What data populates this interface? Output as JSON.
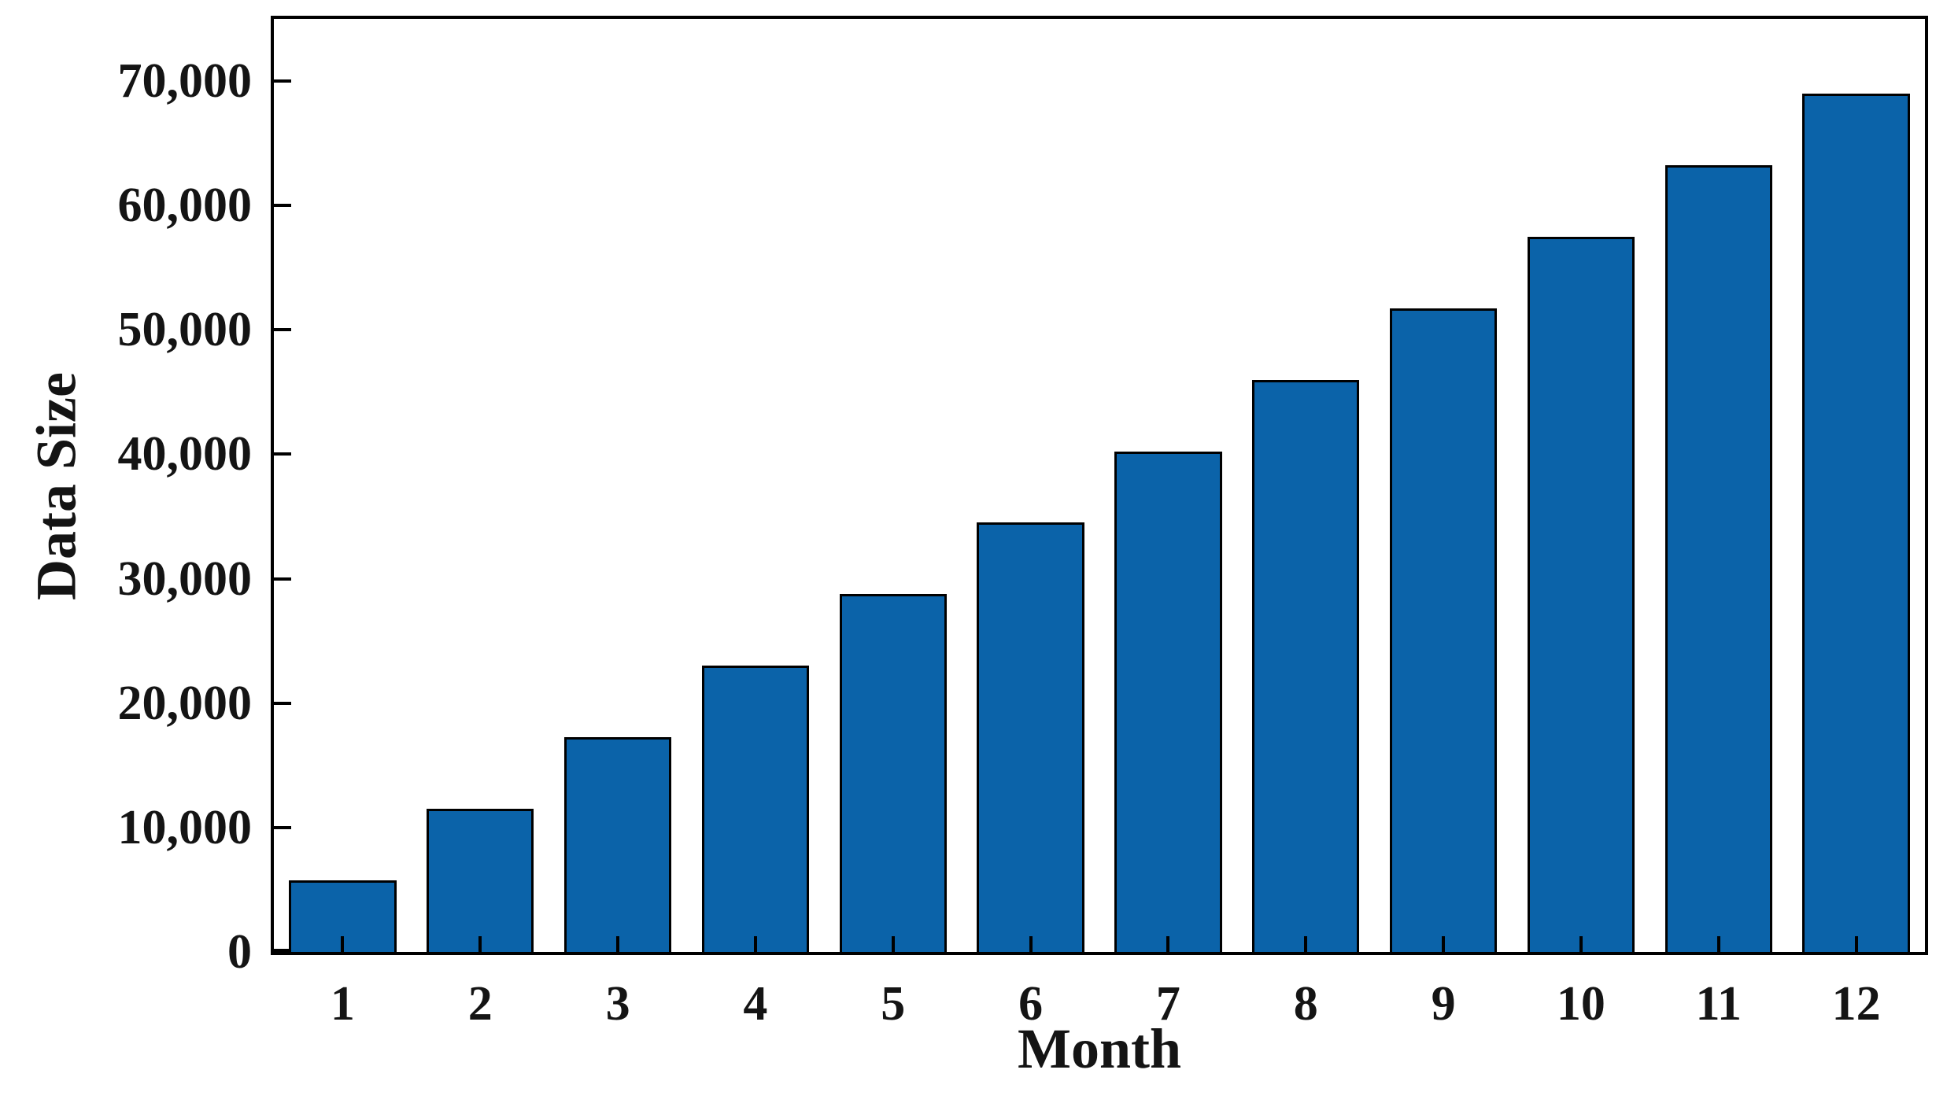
{
  "figure": {
    "background": "#ffffff",
    "bar_fill": "#0b63a9",
    "bar_edge": "#000000",
    "axis_color": "#000000",
    "text_color": "#141414"
  },
  "chart_data": {
    "type": "bar",
    "title": "",
    "xlabel": "Month",
    "ylabel": "Data Size",
    "categories": [
      "1",
      "2",
      "3",
      "4",
      "5",
      "6",
      "7",
      "8",
      "9",
      "10",
      "11",
      "12"
    ],
    "values": [
      5750,
      11500,
      17250,
      23000,
      28750,
      34500,
      40250,
      46000,
      51750,
      57500,
      63250,
      69000
    ],
    "ylim": [
      0,
      75000
    ],
    "yticks": [
      0,
      10000,
      20000,
      30000,
      40000,
      50000,
      60000,
      70000
    ],
    "ytick_labels": [
      "0",
      "10,000",
      "20,000",
      "30,000",
      "40,000",
      "50,000",
      "60,000",
      "70,000"
    ],
    "bar_width_ratio": 0.78,
    "grid": false,
    "legend": "none",
    "frame": "box",
    "tick_direction": "in"
  }
}
